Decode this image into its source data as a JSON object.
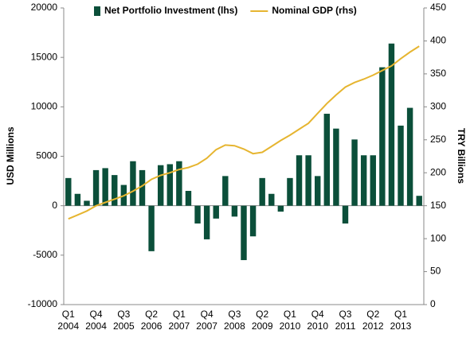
{
  "chart_data": {
    "type": "bar_line",
    "categories": [
      "Q1 2004",
      null,
      null,
      "Q4 2004",
      null,
      null,
      "Q3 2005",
      null,
      null,
      "Q2 2006",
      null,
      null,
      "Q1 2007",
      null,
      null,
      "Q4 2007",
      null,
      null,
      "Q3 2008",
      null,
      null,
      "Q2 2009",
      null,
      null,
      "Q1 2010",
      null,
      null,
      "Q4 2010",
      null,
      null,
      "Q3 2011",
      null,
      null,
      "Q2 2012",
      null,
      null,
      "Q1 2013",
      null,
      null
    ],
    "series": [
      {
        "name": "Net Portfolio Investment (lhs)",
        "type": "bar",
        "color": "#0b4f3a",
        "axis": "y",
        "values": [
          2800,
          1200,
          500,
          3600,
          3800,
          3100,
          2100,
          4500,
          3600,
          -4600,
          4100,
          4200,
          4500,
          1500,
          -1800,
          -3400,
          -1300,
          3000,
          -1100,
          -5500,
          -3100,
          2800,
          1200,
          -600,
          2800,
          5100,
          5100,
          3000,
          9300,
          7800,
          -1800,
          6700,
          5100,
          5100,
          14000,
          16400,
          8100,
          9900,
          1000
        ]
      },
      {
        "name": "Nominal GDP (rhs)",
        "type": "line",
        "color": "#e6b530",
        "axis": "y2",
        "values": [
          130,
          136,
          142,
          150,
          155,
          160,
          165,
          172,
          180,
          190,
          196,
          200,
          205,
          208,
          213,
          222,
          235,
          242,
          241,
          236,
          229,
          231,
          240,
          249,
          257,
          266,
          275,
          290,
          305,
          318,
          330,
          337,
          342,
          348,
          355,
          362,
          373,
          383,
          392
        ]
      }
    ],
    "ylabel": "USD Millions",
    "y2label": "TRY Billions",
    "ylim": [
      -10000,
      20000
    ],
    "yticks": [
      -10000,
      -5000,
      0,
      5000,
      10000,
      15000,
      20000
    ],
    "y2lim": [
      0,
      450
    ],
    "y2ticks": [
      0,
      50,
      100,
      150,
      200,
      250,
      300,
      350,
      400,
      450
    ],
    "legend": "top",
    "grid": false
  }
}
